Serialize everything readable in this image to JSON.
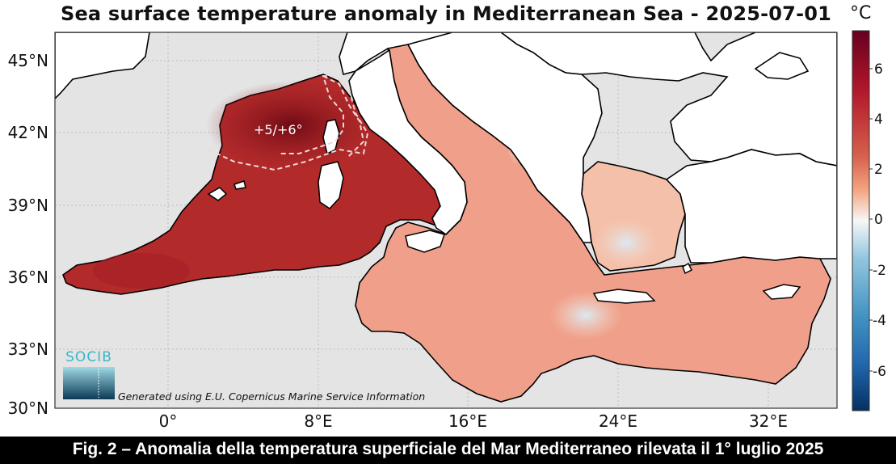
{
  "title": "Sea surface temperature anomaly in Mediterranean Sea - 2025-07-01",
  "unit": "°C",
  "caption": "Fig. 2 – Anomalia della temperatura superficiale del Mar Mediterraneo rilevata il 1° luglio 2025",
  "credit": "Generated using E.U. Copernicus Marine Service Information",
  "logo_text": "SOCIB",
  "annotation": "+5/+6°",
  "axes": {
    "lat_ticks": [
      "45°N",
      "42°N",
      "39°N",
      "36°N",
      "33°N",
      "30°N"
    ],
    "lon_ticks": [
      "0°",
      "8°E",
      "16°E",
      "24°E",
      "32°E"
    ]
  },
  "colorbar": {
    "range": [
      -7.5,
      7.5
    ],
    "ticks": [
      "6",
      "4",
      "2",
      "0",
      "-2",
      "-4",
      "-6"
    ],
    "colors": {
      "max": "#67001f",
      "warm": "#d6604d",
      "mild": "#f4a582",
      "neutral": "#f7f7f7",
      "cool": "#92c5de",
      "cold": "#4393c3",
      "min": "#053061"
    }
  },
  "colors": {
    "land": "#ffffff",
    "sea_background": "#e4e4e4",
    "west_anomaly": "#b22a2a",
    "east_anomaly": "#f0a08a"
  }
}
